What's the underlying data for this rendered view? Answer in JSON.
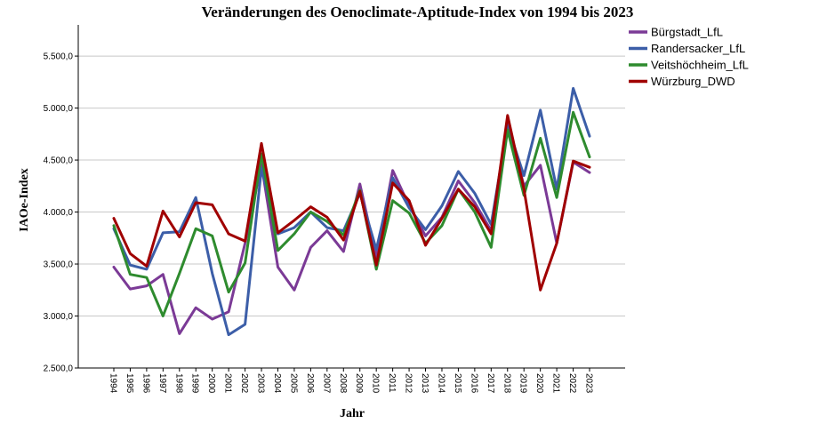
{
  "chart_data": {
    "type": "line",
    "title": "Veränderungen des Oenoclimate-Aptitude-Index von 1994 bis 2023",
    "xlabel": "Jahr",
    "ylabel": "IAOe-Index",
    "ylim": [
      2500,
      5800
    ],
    "yticks": [
      2500,
      3000,
      3500,
      4000,
      4500,
      5000,
      5500
    ],
    "ytick_labels": [
      "2.500,0",
      "3.000,0",
      "3.500,0",
      "4.000,0",
      "4.500,0",
      "5.000,0",
      "5.500,0"
    ],
    "grid": "horizontal",
    "legend_position": "top-right",
    "x": [
      "1994",
      "1995",
      "1996",
      "1997",
      "1998",
      "1999",
      "2000",
      "2001",
      "2002",
      "2003",
      "2004",
      "2005",
      "2006",
      "2007",
      "2008",
      "2009",
      "2010",
      "2011",
      "2012",
      "2013",
      "2014",
      "2015",
      "2016",
      "2017",
      "2018",
      "2019",
      "2020",
      "2021",
      "2022",
      "2023"
    ],
    "series": [
      {
        "name": "Bürgstadt_LfL",
        "color": "#7b3a96",
        "values": [
          3470,
          3260,
          3290,
          3400,
          2830,
          3080,
          2970,
          3040,
          3700,
          4460,
          3470,
          3250,
          3660,
          3820,
          3620,
          4270,
          3560,
          4400,
          4060,
          3770,
          3950,
          4300,
          4090,
          3820,
          4860,
          4250,
          4450,
          3700,
          4480,
          4380
        ]
      },
      {
        "name": "Randersacker_LfL",
        "color": "#3c5ea8",
        "values": [
          3840,
          3490,
          3450,
          3800,
          3810,
          4140,
          3410,
          2820,
          2920,
          4420,
          3790,
          3850,
          4000,
          3850,
          3820,
          4180,
          3640,
          4330,
          4040,
          3830,
          4060,
          4390,
          4180,
          3880,
          4830,
          4350,
          4980,
          4220,
          5190,
          4730
        ]
      },
      {
        "name": "Veitshöchheim_LfL",
        "color": "#2e8b2e",
        "values": [
          3870,
          3400,
          3370,
          3000,
          3410,
          3840,
          3770,
          3230,
          3510,
          4560,
          3630,
          3790,
          4000,
          3910,
          3780,
          4210,
          3450,
          4110,
          3990,
          3700,
          3870,
          4220,
          4000,
          3660,
          4790,
          4160,
          4710,
          4140,
          4960,
          4530
        ]
      },
      {
        "name": "Würzburg_DWD",
        "color": "#a00000",
        "values": [
          3940,
          3600,
          3480,
          4010,
          3760,
          4090,
          4070,
          3790,
          3720,
          4660,
          3800,
          3920,
          4050,
          3950,
          3730,
          4200,
          3490,
          4280,
          4110,
          3680,
          3940,
          4220,
          4050,
          3790,
          4930,
          4220,
          3250,
          3700,
          4490,
          4430
        ]
      }
    ]
  }
}
